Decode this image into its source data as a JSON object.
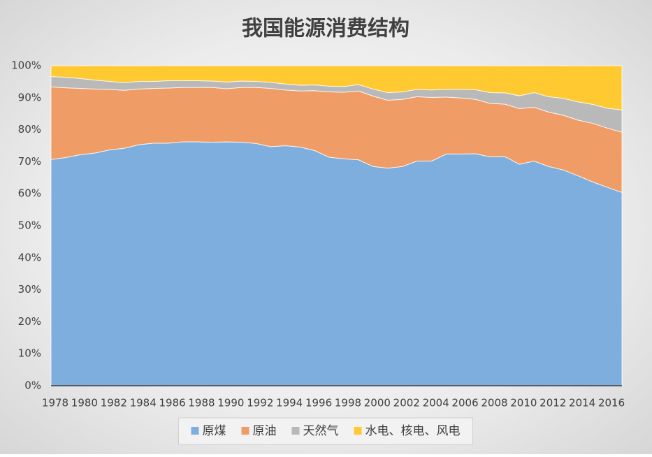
{
  "chart_data": {
    "type": "stacked_area",
    "title": "我国能源消费结构",
    "categories": [
      "1978",
      null,
      "1980",
      null,
      "1982",
      null,
      "1984",
      null,
      "1986",
      null,
      "1988",
      null,
      "1990",
      null,
      "1992",
      null,
      "1994",
      null,
      "1996",
      null,
      "1998",
      null,
      "2000",
      null,
      "2002",
      null,
      "2004",
      null,
      "2006",
      null,
      "2008",
      null,
      "2010",
      null,
      "2012",
      null,
      "2014",
      null,
      "2016",
      null
    ],
    "series": [
      {
        "name": "原煤",
        "color": "#7eaedd",
        "values": [
          70.7,
          71.3,
          72.2,
          72.7,
          73.7,
          74.2,
          75.3,
          75.8,
          75.8,
          76.2,
          76.2,
          76.1,
          76.2,
          76.1,
          75.7,
          74.7,
          75.0,
          74.6,
          73.5,
          71.4,
          70.9,
          70.6,
          68.5,
          68.0,
          68.5,
          70.2,
          70.2,
          72.4,
          72.4,
          72.5,
          71.5,
          71.6,
          69.2,
          70.2,
          68.5,
          67.4,
          65.6,
          63.7,
          62.0,
          60.4
        ]
      },
      {
        "name": "原油",
        "color": "#f09c66",
        "values": [
          22.7,
          21.8,
          20.7,
          20.0,
          18.9,
          18.1,
          17.4,
          17.1,
          17.2,
          17.0,
          17.0,
          17.1,
          16.6,
          17.1,
          17.5,
          18.2,
          17.4,
          17.5,
          18.7,
          20.4,
          20.8,
          21.5,
          22.0,
          21.2,
          21.0,
          20.1,
          19.9,
          17.8,
          17.5,
          17.0,
          16.7,
          16.4,
          17.4,
          16.8,
          17.0,
          17.1,
          17.4,
          18.3,
          18.5,
          18.8
        ]
      },
      {
        "name": "天然气",
        "color": "#b9b9b9",
        "values": [
          3.2,
          3.3,
          3.1,
          2.8,
          2.5,
          2.4,
          2.4,
          2.2,
          2.3,
          2.1,
          2.1,
          2.0,
          2.1,
          2.0,
          1.9,
          1.9,
          1.9,
          1.8,
          1.8,
          1.8,
          1.8,
          2.0,
          2.2,
          2.4,
          2.3,
          2.3,
          2.3,
          2.4,
          2.7,
          3.0,
          3.4,
          3.5,
          4.0,
          4.6,
          4.8,
          5.3,
          5.7,
          5.9,
          6.2,
          7.0
        ]
      },
      {
        "name": "水电、核电、风电",
        "color": "#ffc931",
        "values": [
          3.4,
          3.6,
          4.0,
          4.5,
          4.9,
          5.3,
          4.9,
          4.9,
          4.7,
          4.7,
          4.7,
          4.8,
          5.1,
          4.8,
          4.9,
          5.2,
          5.7,
          6.1,
          6.0,
          6.4,
          6.5,
          5.9,
          7.3,
          8.4,
          8.2,
          7.4,
          7.6,
          7.4,
          7.4,
          7.5,
          8.4,
          8.5,
          9.4,
          8.4,
          9.7,
          10.2,
          11.3,
          12.1,
          13.3,
          13.8
        ]
      }
    ],
    "ylim": [
      0,
      100
    ],
    "yticks": [
      {
        "value": 0,
        "label": "0%"
      },
      {
        "value": 10,
        "label": "10%"
      },
      {
        "value": 20,
        "label": "20%"
      },
      {
        "value": 30,
        "label": "30%"
      },
      {
        "value": 40,
        "label": "40%"
      },
      {
        "value": 50,
        "label": "50%"
      },
      {
        "value": 60,
        "label": "60%"
      },
      {
        "value": 70,
        "label": "70%"
      },
      {
        "value": 80,
        "label": "80%"
      },
      {
        "value": 90,
        "label": "90%"
      },
      {
        "value": 100,
        "label": "100%"
      }
    ],
    "grid": false,
    "legend": "bottom"
  }
}
